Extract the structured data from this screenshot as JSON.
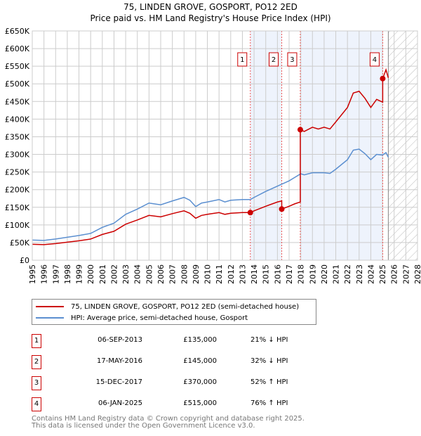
{
  "chart_data": {
    "type": "line",
    "title": "75, LINDEN GROVE, GOSPORT, PO12 2ED",
    "subtitle": "Price paid vs. HM Land Registry's House Price Index (HPI)",
    "xlim": [
      1995,
      2028
    ],
    "ylim": [
      0,
      650000
    ],
    "y_ticks": [
      "£0",
      "£50K",
      "£100K",
      "£150K",
      "£200K",
      "£250K",
      "£300K",
      "£350K",
      "£400K",
      "£450K",
      "£500K",
      "£550K",
      "£600K",
      "£650K"
    ],
    "x_ticks": [
      "1995",
      "1996",
      "1997",
      "1998",
      "1999",
      "2000",
      "2001",
      "2002",
      "2003",
      "2004",
      "2005",
      "2006",
      "2007",
      "2008",
      "2009",
      "2010",
      "2011",
      "2012",
      "2013",
      "2014",
      "2015",
      "2016",
      "2017",
      "2018",
      "2019",
      "2020",
      "2021",
      "2022",
      "2023",
      "2024",
      "2025",
      "2026",
      "2027",
      "2028"
    ],
    "grid": true,
    "series": [
      {
        "name": "75, LINDEN GROVE, GOSPORT, PO12 2ED (semi-detached house)",
        "color": "#cc0000",
        "points": [
          [
            1995,
            45
          ],
          [
            1996,
            44
          ],
          [
            1997,
            47
          ],
          [
            1998,
            51
          ],
          [
            1999,
            55
          ],
          [
            2000,
            60
          ],
          [
            2001,
            73
          ],
          [
            2002,
            82
          ],
          [
            2003,
            102
          ],
          [
            2004,
            114
          ],
          [
            2005,
            127
          ],
          [
            2006,
            123
          ],
          [
            2007,
            132
          ],
          [
            2008,
            140
          ],
          [
            2008.5,
            133
          ],
          [
            2009,
            119
          ],
          [
            2009.5,
            127
          ],
          [
            2010,
            130
          ],
          [
            2011,
            135
          ],
          [
            2011.5,
            130
          ],
          [
            2012,
            133
          ],
          [
            2013,
            135
          ],
          [
            2013.68,
            135
          ],
          [
            2014,
            140
          ],
          [
            2015,
            153
          ],
          [
            2016,
            165
          ],
          [
            2016.37,
            168
          ],
          [
            2016.37,
            145
          ],
          [
            2017,
            153
          ],
          [
            2017.5,
            160
          ],
          [
            2017.96,
            165
          ],
          [
            2017.96,
            370
          ],
          [
            2018.3,
            365
          ],
          [
            2019,
            377
          ],
          [
            2019.5,
            372
          ],
          [
            2020,
            377
          ],
          [
            2020.5,
            372
          ],
          [
            2021,
            392
          ],
          [
            2022,
            433
          ],
          [
            2022.5,
            474
          ],
          [
            2023,
            479
          ],
          [
            2023.5,
            459
          ],
          [
            2024,
            433
          ],
          [
            2024.5,
            456
          ],
          [
            2025.02,
            448
          ],
          [
            2025.02,
            515
          ],
          [
            2025.3,
            540
          ],
          [
            2025.5,
            517
          ]
        ]
      },
      {
        "name": "HPI: Average price, semi-detached house, Gosport",
        "color": "#5b8fd0",
        "points": [
          [
            1995,
            57
          ],
          [
            1996,
            56
          ],
          [
            1997,
            60
          ],
          [
            1998,
            65
          ],
          [
            1999,
            70
          ],
          [
            2000,
            76
          ],
          [
            2001,
            93
          ],
          [
            2002,
            105
          ],
          [
            2003,
            130
          ],
          [
            2004,
            145
          ],
          [
            2005,
            162
          ],
          [
            2006,
            157
          ],
          [
            2007,
            168
          ],
          [
            2008,
            178
          ],
          [
            2008.5,
            170
          ],
          [
            2009,
            152
          ],
          [
            2009.5,
            162
          ],
          [
            2010,
            165
          ],
          [
            2011,
            172
          ],
          [
            2011.5,
            165
          ],
          [
            2012,
            170
          ],
          [
            2013,
            172
          ],
          [
            2013.68,
            172
          ],
          [
            2014,
            178
          ],
          [
            2015,
            195
          ],
          [
            2016,
            210
          ],
          [
            2017,
            225
          ],
          [
            2017.5,
            235
          ],
          [
            2018,
            245
          ],
          [
            2018.3,
            242
          ],
          [
            2019,
            248
          ],
          [
            2020,
            248
          ],
          [
            2020.5,
            246
          ],
          [
            2021,
            258
          ],
          [
            2022,
            285
          ],
          [
            2022.5,
            312
          ],
          [
            2023,
            315
          ],
          [
            2023.5,
            302
          ],
          [
            2024,
            285
          ],
          [
            2024.5,
            300
          ],
          [
            2025,
            298
          ],
          [
            2025.3,
            305
          ],
          [
            2025.5,
            292
          ]
        ]
      }
    ],
    "sales": [
      {
        "n": "1",
        "x": 2013.68,
        "value": 135,
        "date": "06-SEP-2013",
        "price": "£135,000",
        "hpi": "21% ↓ HPI"
      },
      {
        "n": "2",
        "x": 2016.37,
        "value": 145,
        "date": "17-MAY-2016",
        "price": "£145,000",
        "hpi": "32% ↓ HPI"
      },
      {
        "n": "3",
        "x": 2017.96,
        "value": 370,
        "date": "15-DEC-2017",
        "price": "£370,000",
        "hpi": "52% ↑ HPI"
      },
      {
        "n": "4",
        "x": 2025.02,
        "value": 515,
        "date": "06-JAN-2025",
        "price": "£515,000",
        "hpi": "76% ↑ HPI"
      }
    ],
    "forecast_from": 2025.5,
    "legend_placement": "below"
  },
  "footer": {
    "line1": "Contains HM Land Registry data © Crown copyright and database right 2025.",
    "line2": "This data is licensed under the Open Government Licence v3.0."
  }
}
